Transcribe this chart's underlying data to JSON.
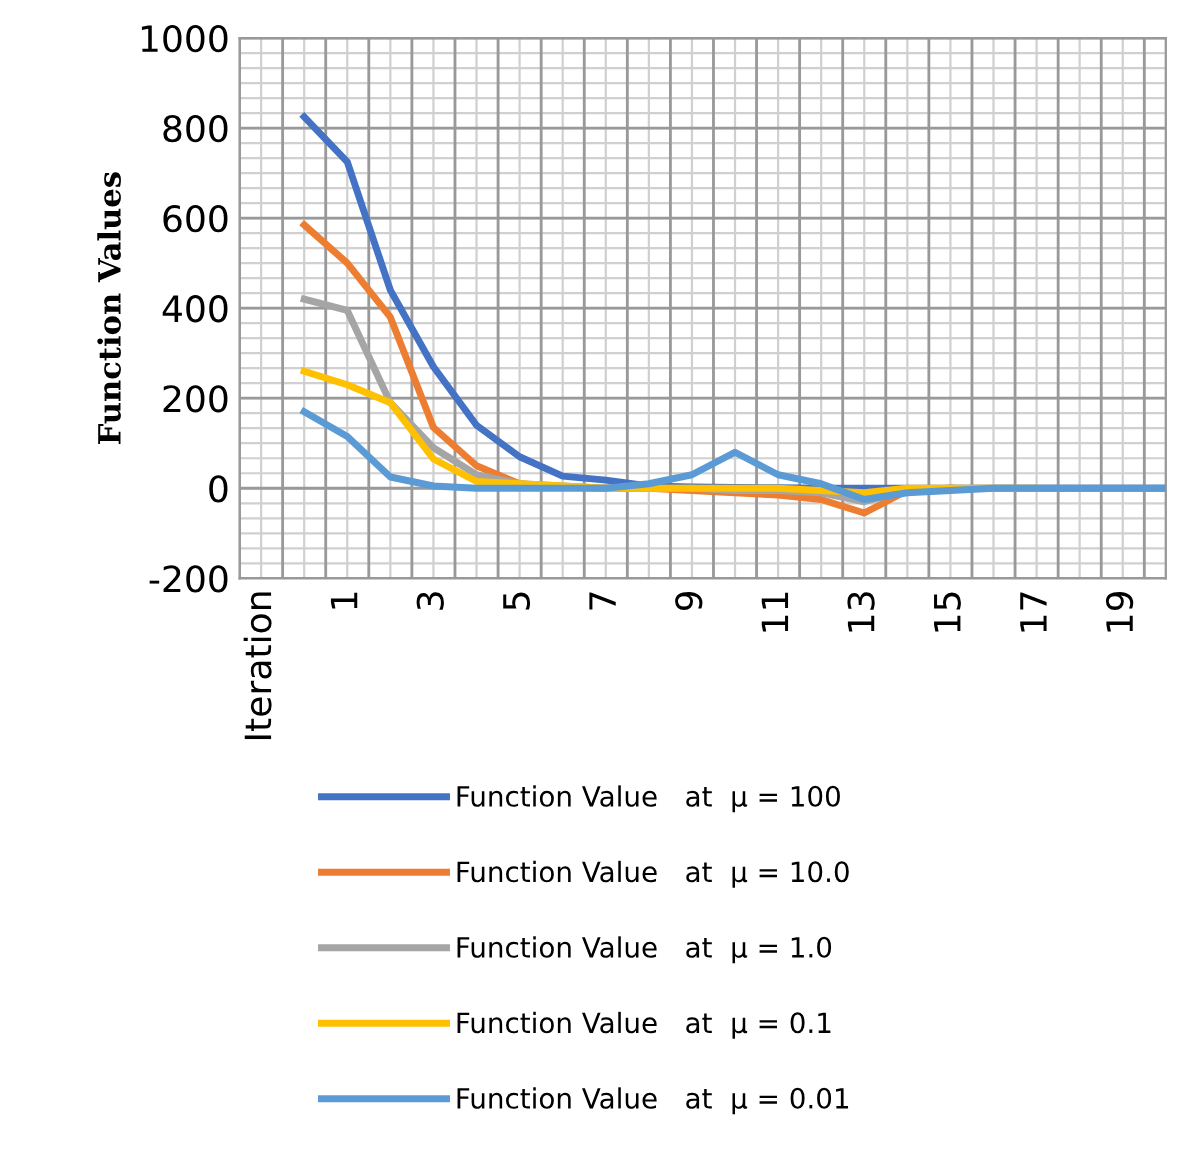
{
  "chart_data": {
    "type": "line",
    "ylabel": "Function Values",
    "categories": [
      "Iteration",
      null,
      "1",
      null,
      "3",
      null,
      "5",
      null,
      "7",
      null,
      "9",
      null,
      "11",
      null,
      "13",
      null,
      "15",
      null,
      "17",
      null,
      "19",
      null
    ],
    "series": [
      {
        "name": "Function Value   at  μ = 100",
        "color": "#4472c4",
        "values": [
          null,
          825,
          725,
          440,
          270,
          140,
          70,
          27,
          18,
          5,
          3,
          2,
          1,
          0,
          0,
          0,
          0,
          0,
          0,
          0,
          0,
          0
        ]
      },
      {
        "name": "Function Value   at  μ = 10.0",
        "color": "#ed7d31",
        "values": [
          null,
          585,
          500,
          380,
          135,
          50,
          10,
          2,
          0,
          0,
          -5,
          -10,
          -15,
          -25,
          -55,
          -5,
          0,
          null,
          null,
          null,
          null,
          null
        ]
      },
      {
        "name": "Function Value   at  μ = 1.0",
        "color": "#a5a5a5",
        "values": [
          null,
          420,
          395,
          190,
          90,
          30,
          10,
          5,
          0,
          0,
          0,
          -5,
          -5,
          -10,
          -30,
          -5,
          0,
          0,
          0,
          0,
          0,
          0
        ]
      },
      {
        "name": "Function Value   at  μ = 0.1",
        "color": "#ffc000",
        "values": [
          null,
          260,
          230,
          190,
          65,
          15,
          10,
          5,
          0,
          0,
          0,
          0,
          0,
          -5,
          -10,
          0,
          0,
          0,
          0,
          null,
          null,
          null
        ]
      },
      {
        "name": "Function Value   at  μ = 0.01",
        "color": "#5b9bd5",
        "values": [
          null,
          170,
          115,
          25,
          5,
          0,
          0,
          0,
          0,
          10,
          30,
          80,
          30,
          10,
          -25,
          -10,
          -5,
          0,
          0,
          0,
          0,
          0
        ]
      }
    ],
    "ylim": [
      -200,
      1000
    ],
    "yticks": [
      -200,
      0,
      200,
      400,
      600,
      800,
      1000
    ],
    "grid": true,
    "legend": "bottom",
    "line_style": "solid",
    "marker": "none"
  }
}
